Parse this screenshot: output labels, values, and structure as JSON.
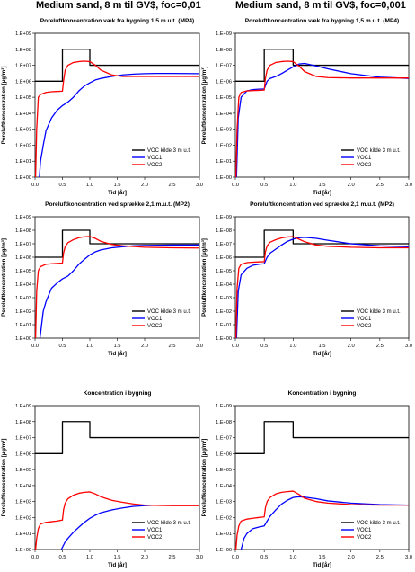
{
  "headings": {
    "left": "Medium sand, 8 m til GV$, foc=0,01",
    "right": "Medium sand, 8 m til GV$, foc=0,001"
  },
  "colors": {
    "source": "#000000",
    "voc1": "#0000ff",
    "voc2": "#ff0000"
  },
  "chart_data": [
    {
      "type": "line",
      "title": "Poreluftkoncentration væk fra bygning 1,5 m.u.t. (MP4)",
      "xlabel": "Tid [år]",
      "ylabel": "Poreluftkoncentration [µg/m³]",
      "xlim": [
        0,
        3
      ],
      "ylim": [
        1,
        1000000000
      ],
      "yscale": "log",
      "xticks": [
        "0.0",
        "0.5",
        "1.0",
        "1.5",
        "2.0",
        "2.5",
        "3.0"
      ],
      "yticks": [
        "1.E+00",
        "1.E+01",
        "1.E+02",
        "1.E+03",
        "1.E+04",
        "1.E+05",
        "1.E+06",
        "1.E+07",
        "1.E+08",
        "1.E+09"
      ],
      "legend": "bottom-right",
      "grid": false,
      "series": [
        {
          "name": "VOC kilde 3 m u.t.",
          "color": "#000000",
          "x": [
            0,
            0.5,
            0.5,
            1.0,
            1.0,
            3.0
          ],
          "y": [
            1000000,
            1000000,
            100000000,
            100000000,
            10000000,
            10000000
          ]
        },
        {
          "name": "VOC1",
          "color": "#0000ff",
          "x": [
            0.08,
            0.1,
            0.15,
            0.2,
            0.3,
            0.4,
            0.5,
            0.6,
            0.7,
            0.8,
            0.9,
            1.0,
            1.1,
            1.2,
            1.4,
            1.6,
            1.8,
            2.0,
            2.2,
            2.5,
            3.0
          ],
          "y": [
            1,
            10,
            100,
            800,
            5000,
            15000,
            30000,
            50000,
            100000,
            250000,
            500000,
            800000,
            1200000,
            1500000,
            2000000,
            2500000,
            2800000,
            3000000,
            3100000,
            3100000,
            3000000
          ]
        },
        {
          "name": "VOC2",
          "color": "#ff0000",
          "x": [
            0.01,
            0.03,
            0.06,
            0.1,
            0.2,
            0.3,
            0.4,
            0.5,
            0.52,
            0.55,
            0.6,
            0.7,
            0.8,
            0.9,
            1.0,
            1.1,
            1.2,
            1.4,
            1.6,
            2.0,
            2.5,
            3.0
          ],
          "y": [
            1,
            1000,
            100000,
            150000,
            200000,
            220000,
            230000,
            240000,
            1000000,
            5000000,
            10000000,
            15000000,
            17000000,
            18000000,
            17000000,
            10000000,
            5000000,
            2500000,
            2000000,
            2000000,
            2000000,
            2000000
          ]
        }
      ]
    },
    {
      "type": "line",
      "title": "Poreluftkoncentration væk fra bygning 1,5 m.u.t. (MP4)",
      "xlabel": "Tid [år]",
      "ylabel": "Poreluftkoncentration [µg/m³]",
      "xlim": [
        0,
        3
      ],
      "ylim": [
        1,
        1000000000
      ],
      "yscale": "log",
      "xticks": [
        "0.0",
        "0.5",
        "1.0",
        "1.5",
        "2.0",
        "2.5",
        "3.0"
      ],
      "yticks": [
        "1.E+00",
        "1.E+01",
        "1.E+02",
        "1.E+03",
        "1.E+04",
        "1.E+05",
        "1.E+06",
        "1.E+07",
        "1.E+08",
        "1.E+09"
      ],
      "legend": "bottom-right",
      "grid": false,
      "series": [
        {
          "name": "VOC kilde 3 m u.t.",
          "color": "#000000",
          "x": [
            0,
            0.5,
            0.5,
            1.0,
            1.0,
            3.0
          ],
          "y": [
            1000000,
            1000000,
            100000000,
            100000000,
            10000000,
            10000000
          ]
        },
        {
          "name": "VOC1",
          "color": "#0000ff",
          "x": [
            0.02,
            0.05,
            0.1,
            0.2,
            0.3,
            0.4,
            0.5,
            0.55,
            0.6,
            0.7,
            0.8,
            0.9,
            1.0,
            1.1,
            1.2,
            1.4,
            1.6,
            2.0,
            2.5,
            3.0
          ],
          "y": [
            1,
            5000,
            100000,
            250000,
            300000,
            320000,
            330000,
            1000000,
            1500000,
            2000000,
            3000000,
            5000000,
            8000000,
            12000000,
            13000000,
            9000000,
            6000000,
            3000000,
            1800000,
            1500000
          ]
        },
        {
          "name": "VOC2",
          "color": "#ff0000",
          "x": [
            0.01,
            0.03,
            0.06,
            0.1,
            0.2,
            0.3,
            0.4,
            0.5,
            0.52,
            0.55,
            0.6,
            0.7,
            0.8,
            0.9,
            1.0,
            1.1,
            1.2,
            1.4,
            1.6,
            2.0,
            2.5,
            3.0
          ],
          "y": [
            1,
            1000,
            100000,
            200000,
            250000,
            260000,
            270000,
            280000,
            1500000,
            5000000,
            10000000,
            15000000,
            17000000,
            18000000,
            17000000,
            9000000,
            4000000,
            2000000,
            1700000,
            1600000,
            1600000,
            1600000
          ]
        }
      ]
    },
    {
      "type": "line",
      "title": "Poreluftkoncentration ved sprække 2,1 m.u.t. (MP2)",
      "xlabel": "Tid [år]",
      "ylabel": "Poreluftkoncentration [µg/m³]",
      "xlim": [
        0,
        3
      ],
      "ylim": [
        1,
        1000000000
      ],
      "yscale": "log",
      "xticks": [
        "0.0",
        "0.5",
        "1.0",
        "1.5",
        "2.0",
        "2.5",
        "3.0"
      ],
      "yticks": [
        "1.E+00",
        "1.E+01",
        "1.E+02",
        "1.E+03",
        "1.E+04",
        "1.E+05",
        "1.E+06",
        "1.E+07",
        "1.E+08",
        "1.E+09"
      ],
      "legend": "bottom-right",
      "grid": false,
      "series": [
        {
          "name": "VOC kilde 3 m u.t.",
          "color": "#000000",
          "x": [
            0,
            0.5,
            0.5,
            1.0,
            1.0,
            3.0
          ],
          "y": [
            1000000,
            1000000,
            100000000,
            100000000,
            10000000,
            10000000
          ]
        },
        {
          "name": "VOC1",
          "color": "#0000ff",
          "x": [
            0.09,
            0.12,
            0.15,
            0.2,
            0.3,
            0.4,
            0.5,
            0.6,
            0.7,
            0.8,
            0.9,
            1.0,
            1.1,
            1.2,
            1.4,
            1.6,
            1.8,
            2.0,
            2.5,
            3.0
          ],
          "y": [
            1,
            10,
            100,
            500,
            5000,
            12000,
            25000,
            40000,
            100000,
            300000,
            700000,
            1500000,
            2500000,
            3500000,
            5000000,
            6000000,
            7000000,
            7500000,
            8000000,
            8000000
          ]
        },
        {
          "name": "VOC2",
          "color": "#ff0000",
          "x": [
            0.01,
            0.03,
            0.06,
            0.1,
            0.2,
            0.3,
            0.4,
            0.5,
            0.52,
            0.55,
            0.6,
            0.7,
            0.8,
            0.9,
            1.0,
            1.1,
            1.2,
            1.4,
            1.6,
            2.0,
            2.5,
            3.0
          ],
          "y": [
            1,
            3000,
            100000,
            200000,
            300000,
            330000,
            350000,
            370000,
            2000000,
            6000000,
            12000000,
            20000000,
            28000000,
            33000000,
            35000000,
            25000000,
            15000000,
            9000000,
            7000000,
            5500000,
            5000000,
            4800000
          ]
        }
      ]
    },
    {
      "type": "line",
      "title": "Poreluftkoncentration ved sprække 2,1 m.u.t. (MP2)",
      "xlabel": "Tid [år]",
      "ylabel": "Poreluftkoncentration [µg/m³]",
      "xlim": [
        0,
        3
      ],
      "ylim": [
        1,
        1000000000
      ],
      "yscale": "log",
      "xticks": [
        "0.0",
        "0.5",
        "1.0",
        "1.5",
        "2.0",
        "2.5",
        "3.0"
      ],
      "yticks": [
        "1.E+00",
        "1.E+01",
        "1.E+02",
        "1.E+03",
        "1.E+04",
        "1.E+05",
        "1.E+06",
        "1.E+07",
        "1.E+08",
        "1.E+09"
      ],
      "legend": "bottom-right",
      "grid": false,
      "series": [
        {
          "name": "VOC kilde 3 m u.t.",
          "color": "#000000",
          "x": [
            0,
            0.5,
            0.5,
            1.0,
            1.0,
            3.0
          ],
          "y": [
            1000000,
            1000000,
            100000000,
            100000000,
            10000000,
            10000000
          ]
        },
        {
          "name": "VOC1",
          "color": "#0000ff",
          "x": [
            0.02,
            0.05,
            0.1,
            0.2,
            0.3,
            0.4,
            0.5,
            0.55,
            0.6,
            0.7,
            0.8,
            0.9,
            1.0,
            1.1,
            1.2,
            1.4,
            1.6,
            2.0,
            2.5,
            3.0
          ],
          "y": [
            1,
            3000,
            50000,
            150000,
            250000,
            300000,
            330000,
            1000000,
            2000000,
            4000000,
            8000000,
            15000000,
            22000000,
            28000000,
            30000000,
            25000000,
            18000000,
            10000000,
            7000000,
            6000000
          ]
        },
        {
          "name": "VOC2",
          "color": "#ff0000",
          "x": [
            0.01,
            0.03,
            0.06,
            0.1,
            0.2,
            0.3,
            0.4,
            0.5,
            0.52,
            0.55,
            0.6,
            0.7,
            0.8,
            0.9,
            1.0,
            1.1,
            1.2,
            1.4,
            1.6,
            2.0,
            2.5,
            3.0
          ],
          "y": [
            1,
            5000,
            150000,
            300000,
            400000,
            430000,
            450000,
            470000,
            2500000,
            7000000,
            13000000,
            20000000,
            27000000,
            32000000,
            34000000,
            22000000,
            14000000,
            8000000,
            6500000,
            5500000,
            5000000,
            5000000
          ]
        }
      ]
    },
    {
      "type": "line",
      "title": "Koncentration i bygning",
      "xlabel": "Tid [år]",
      "ylabel": "Poreluftkoncentration [µg/m³]",
      "xlim": [
        0,
        3
      ],
      "ylim": [
        1,
        1000000000
      ],
      "yscale": "log",
      "xticks": [
        "0.0",
        "0.5",
        "1.0",
        "1.5",
        "2.0",
        "2.5",
        "3.0"
      ],
      "yticks": [
        "1.E+00",
        "1.E+01",
        "1.E+02",
        "1.E+03",
        "1.E+04",
        "1.E+05",
        "1.E+06",
        "1.E+07",
        "1.E+08",
        "1.E+09"
      ],
      "legend": "bottom-right",
      "grid": false,
      "series": [
        {
          "name": "VOC kilde 3 m u.t.",
          "color": "#000000",
          "x": [
            0,
            0.5,
            0.5,
            1.0,
            1.0,
            3.0
          ],
          "y": [
            1000000,
            1000000,
            100000000,
            100000000,
            10000000,
            10000000
          ]
        },
        {
          "name": "VOC1",
          "color": "#0000ff",
          "x": [
            0.48,
            0.55,
            0.6,
            0.7,
            0.8,
            0.9,
            1.0,
            1.1,
            1.2,
            1.4,
            1.6,
            1.8,
            2.0,
            2.2,
            2.5,
            3.0
          ],
          "y": [
            1,
            3,
            5,
            12,
            25,
            50,
            90,
            140,
            200,
            300,
            400,
            500,
            550,
            600,
            600,
            600
          ]
        },
        {
          "name": "VOC2",
          "color": "#ff0000",
          "x": [
            0.01,
            0.03,
            0.06,
            0.1,
            0.2,
            0.3,
            0.4,
            0.5,
            0.52,
            0.55,
            0.6,
            0.7,
            0.8,
            0.9,
            1.0,
            1.1,
            1.2,
            1.4,
            1.6,
            1.8,
            2.0,
            2.5,
            3.0
          ],
          "y": [
            1,
            5,
            20,
            40,
            50,
            55,
            60,
            70,
            300,
            800,
            1500,
            2500,
            3300,
            3800,
            4000,
            3000,
            2000,
            1200,
            900,
            700,
            600,
            550,
            550
          ]
        }
      ]
    },
    {
      "type": "line",
      "title": "Koncentration i bygning",
      "xlabel": "Tid [år]",
      "ylabel": "Poreluftkoncentration [µg/m³]",
      "xlim": [
        0,
        3
      ],
      "ylim": [
        1,
        1000000000
      ],
      "yscale": "log",
      "xticks": [
        "0.0",
        "0.5",
        "1.0",
        "1.5",
        "2.0",
        "2.5",
        "3.0"
      ],
      "yticks": [
        "1.E+00",
        "1.E+01",
        "1.E+02",
        "1.E+03",
        "1.E+04",
        "1.E+05",
        "1.E+06",
        "1.E+07",
        "1.E+08",
        "1.E+09"
      ],
      "legend": "bottom-right",
      "grid": false,
      "series": [
        {
          "name": "VOC kilde 3 m u.t.",
          "color": "#000000",
          "x": [
            0,
            0.5,
            0.5,
            1.0,
            1.0,
            3.0
          ],
          "y": [
            1000000,
            1000000,
            100000000,
            100000000,
            10000000,
            10000000
          ]
        },
        {
          "name": "VOC1",
          "color": "#0000ff",
          "x": [
            0.1,
            0.15,
            0.2,
            0.3,
            0.4,
            0.5,
            0.55,
            0.6,
            0.7,
            0.8,
            0.9,
            1.0,
            1.1,
            1.2,
            1.4,
            1.6,
            2.0,
            2.5,
            3.0
          ],
          "y": [
            1,
            5,
            10,
            20,
            25,
            30,
            60,
            120,
            300,
            700,
            1200,
            1800,
            2000,
            1900,
            1500,
            1100,
            800,
            650,
            600
          ]
        },
        {
          "name": "VOC2",
          "color": "#ff0000",
          "x": [
            0.01,
            0.03,
            0.06,
            0.1,
            0.2,
            0.3,
            0.4,
            0.5,
            0.52,
            0.55,
            0.6,
            0.7,
            0.8,
            0.9,
            1.0,
            1.1,
            1.2,
            1.4,
            1.6,
            2.0,
            2.5,
            3.0
          ],
          "y": [
            1,
            8,
            30,
            60,
            80,
            90,
            100,
            110,
            400,
            1000,
            1800,
            3000,
            3800,
            4200,
            4500,
            2800,
            1600,
            1000,
            800,
            650,
            600,
            600
          ]
        }
      ]
    }
  ]
}
